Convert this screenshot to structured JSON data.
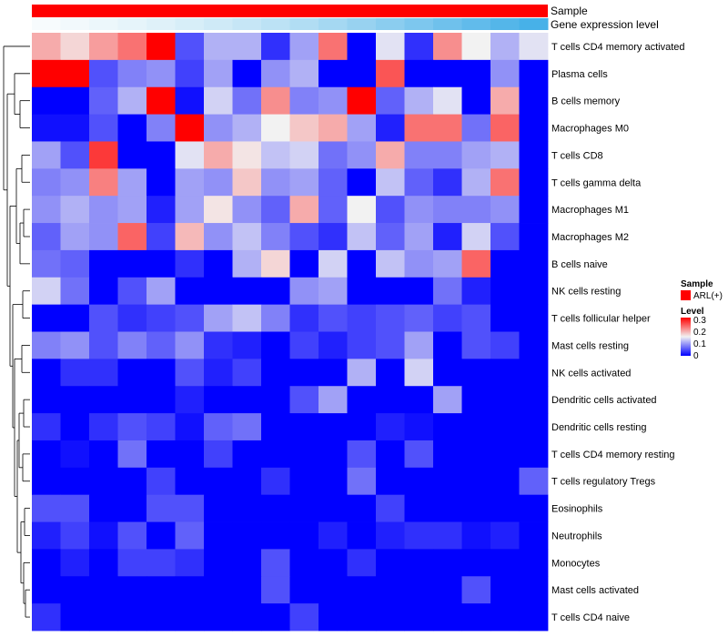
{
  "chart_data": {
    "type": "heatmap",
    "annotation": {
      "sample_label": "Sample",
      "gene_label": "Gene expression level",
      "sample_color": "#ff0000",
      "gene_colors": [
        "#f7fbfd",
        "#f2f9fc",
        "#ecf7fb",
        "#e6f4fa",
        "#dff1f9",
        "#d7eef8",
        "#cfeaf7",
        "#c6e6f6",
        "#bce2f5",
        "#b1ddf3",
        "#a5d8f2",
        "#98d2f0",
        "#8bcdef",
        "#7dc7ee",
        "#6fc1ec",
        "#61bbeb",
        "#54b6e9",
        "#47b1e8"
      ]
    },
    "rows": [
      "T cells CD4 memory activated",
      "Plasma cells",
      "B cells memory",
      "Macrophages M0",
      "T cells CD8",
      "T cells gamma delta",
      "Macrophages M1",
      "Macrophages M2",
      "B cells naive",
      "NK cells resting",
      "T cells follicular helper",
      "Mast cells resting",
      "NK cells activated",
      "Dendritic cells activated",
      "Dendritic cells resting",
      "T cells CD4 memory resting",
      "T cells regulatory  Tregs",
      "Eosinophils",
      "Neutrophils",
      "Monocytes",
      "Mast cells activated",
      "T cells CD4 naive"
    ],
    "n_columns": 18,
    "values": [
      [
        0.2,
        0.17,
        0.21,
        0.24,
        0.32,
        0.05,
        0.11,
        0.11,
        0.03,
        0.1,
        0.24,
        0.0,
        0.14,
        0.03,
        0.22,
        0.15,
        0.11,
        0.14
      ],
      [
        0.32,
        0.32,
        0.05,
        0.08,
        0.09,
        0.04,
        0.1,
        0.0,
        0.09,
        0.11,
        0.0,
        0.0,
        0.26,
        0.0,
        0.0,
        0.0,
        0.09,
        0.0
      ],
      [
        0.0,
        0.0,
        0.06,
        0.11,
        0.32,
        0.01,
        0.13,
        0.07,
        0.22,
        0.08,
        0.09,
        0.32,
        0.06,
        0.11,
        0.14,
        0.0,
        0.2,
        0.0
      ],
      [
        0.01,
        0.01,
        0.05,
        0.0,
        0.08,
        0.32,
        0.09,
        0.11,
        0.15,
        0.18,
        0.2,
        0.1,
        0.02,
        0.24,
        0.24,
        0.07,
        0.25,
        0.0
      ],
      [
        0.1,
        0.05,
        0.28,
        0.0,
        0.0,
        0.14,
        0.2,
        0.16,
        0.12,
        0.13,
        0.07,
        0.09,
        0.2,
        0.08,
        0.08,
        0.1,
        0.11,
        0.0
      ],
      [
        0.08,
        0.09,
        0.23,
        0.1,
        0.0,
        0.1,
        0.09,
        0.18,
        0.09,
        0.1,
        0.06,
        0.0,
        0.12,
        0.06,
        0.03,
        0.11,
        0.24,
        0.0
      ],
      [
        0.09,
        0.11,
        0.09,
        0.1,
        0.02,
        0.1,
        0.16,
        0.09,
        0.06,
        0.2,
        0.06,
        0.15,
        0.05,
        0.09,
        0.08,
        0.08,
        0.09,
        0.0
      ],
      [
        0.06,
        0.1,
        0.09,
        0.25,
        0.04,
        0.19,
        0.09,
        0.12,
        0.08,
        0.05,
        0.03,
        0.12,
        0.06,
        0.1,
        0.02,
        0.13,
        0.05,
        0.0
      ],
      [
        0.07,
        0.06,
        0.0,
        0.0,
        0.0,
        0.03,
        0.0,
        0.11,
        0.17,
        0.0,
        0.13,
        0.0,
        0.12,
        0.09,
        0.1,
        0.25,
        0.0,
        0.0
      ],
      [
        0.13,
        0.07,
        0.0,
        0.05,
        0.1,
        0.0,
        0.0,
        0.0,
        0.0,
        0.09,
        0.1,
        0.0,
        0.0,
        0.0,
        0.07,
        0.02,
        0.0,
        0.0
      ],
      [
        0.0,
        0.0,
        0.05,
        0.03,
        0.04,
        0.05,
        0.1,
        0.12,
        0.08,
        0.03,
        0.05,
        0.04,
        0.05,
        0.06,
        0.04,
        0.05,
        0.0,
        0.0
      ],
      [
        0.08,
        0.09,
        0.05,
        0.08,
        0.06,
        0.09,
        0.03,
        0.02,
        0.0,
        0.04,
        0.02,
        0.04,
        0.05,
        0.1,
        0.0,
        0.05,
        0.04,
        0.0
      ],
      [
        0.0,
        0.03,
        0.03,
        0.0,
        0.0,
        0.05,
        0.02,
        0.04,
        0.0,
        0.0,
        0.0,
        0.11,
        0.0,
        0.13,
        0.0,
        0.0,
        0.0,
        0.0
      ],
      [
        0.0,
        0.0,
        0.0,
        0.0,
        0.0,
        0.02,
        0.0,
        0.0,
        0.0,
        0.05,
        0.1,
        0.0,
        0.0,
        0.0,
        0.1,
        0.0,
        0.0,
        0.0
      ],
      [
        0.03,
        0.0,
        0.03,
        0.05,
        0.04,
        0.01,
        0.06,
        0.07,
        0.0,
        0.0,
        0.0,
        0.0,
        0.02,
        0.01,
        0.0,
        0.0,
        0.0,
        0.0
      ],
      [
        0.0,
        0.01,
        0.0,
        0.07,
        0.0,
        0.0,
        0.04,
        0.0,
        0.0,
        0.0,
        0.0,
        0.05,
        0.0,
        0.05,
        0.0,
        0.0,
        0.0,
        0.0
      ],
      [
        0.0,
        0.0,
        0.0,
        0.0,
        0.04,
        0.0,
        0.0,
        0.0,
        0.03,
        0.0,
        0.0,
        0.07,
        0.0,
        0.0,
        0.0,
        0.0,
        0.0,
        0.06
      ],
      [
        0.05,
        0.05,
        0.0,
        0.0,
        0.05,
        0.05,
        0.0,
        0.0,
        0.0,
        0.0,
        0.0,
        0.0,
        0.04,
        0.0,
        0.0,
        0.0,
        0.0,
        0.0
      ],
      [
        0.02,
        0.04,
        0.01,
        0.05,
        0.0,
        0.06,
        0.0,
        0.0,
        0.0,
        0.0,
        0.02,
        0.0,
        0.02,
        0.03,
        0.03,
        0.01,
        0.02,
        0.0
      ],
      [
        0.0,
        0.02,
        0.0,
        0.04,
        0.04,
        0.03,
        0.0,
        0.0,
        0.05,
        0.0,
        0.0,
        0.03,
        0.0,
        0.0,
        0.0,
        0.0,
        0.0,
        0.0
      ],
      [
        0.0,
        0.0,
        0.0,
        0.0,
        0.0,
        0.0,
        0.0,
        0.0,
        0.05,
        0.0,
        0.0,
        0.0,
        0.0,
        0.0,
        0.0,
        0.05,
        0.0,
        0.0
      ],
      [
        0.03,
        0.0,
        0.0,
        0.0,
        0.0,
        0.0,
        0.0,
        0.0,
        0.0,
        0.04,
        0.0,
        0.0,
        0.0,
        0.0,
        0.0,
        0.0,
        0.0,
        0.0
      ]
    ],
    "color_scale": {
      "min": 0,
      "mid": 0.15,
      "max": 0.32,
      "low_color": "#0000ff",
      "mid_color": "#f2f2f2",
      "high_color": "#ff0000"
    },
    "legend": {
      "sample_title": "Sample",
      "sample_entry": "ARL(+)",
      "level_title": "Level",
      "level_ticks": [
        "0.3",
        "0.2",
        "0.1",
        "0"
      ],
      "level_tick_values": [
        0.3,
        0.2,
        0.1,
        0
      ]
    },
    "dendrogram": "row dendrogram on left side"
  }
}
